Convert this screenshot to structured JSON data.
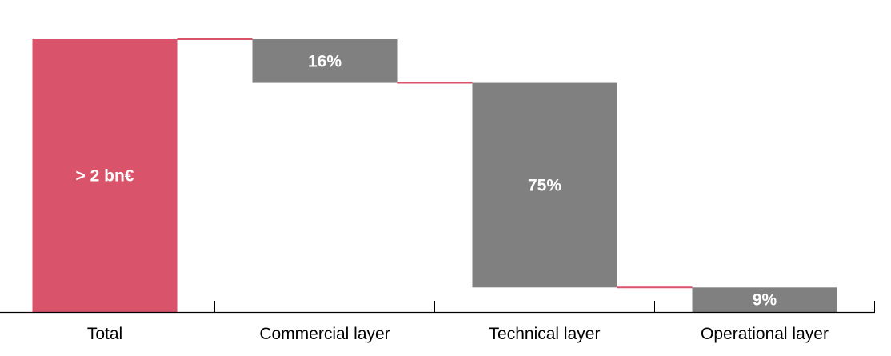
{
  "chart_data": {
    "type": "waterfall",
    "title": "",
    "xlabel": "",
    "ylabel": "",
    "categories": [
      "Total",
      "Commercial layer",
      "Technical layer",
      "Operational layer"
    ],
    "value_labels": [
      "> 2 bn€",
      "16%",
      "75%",
      "9%"
    ],
    "percent_of_total": [
      100,
      16,
      75,
      9
    ],
    "bar_kinds": [
      "total",
      "step",
      "step",
      "step"
    ],
    "ylim": [
      0,
      100
    ],
    "grid": false,
    "legend": "none",
    "colors": {
      "total": "#d9536a",
      "step": "#808080",
      "connector": "#d9536a",
      "axis": "#000000",
      "label_text": "#ffffff"
    }
  }
}
